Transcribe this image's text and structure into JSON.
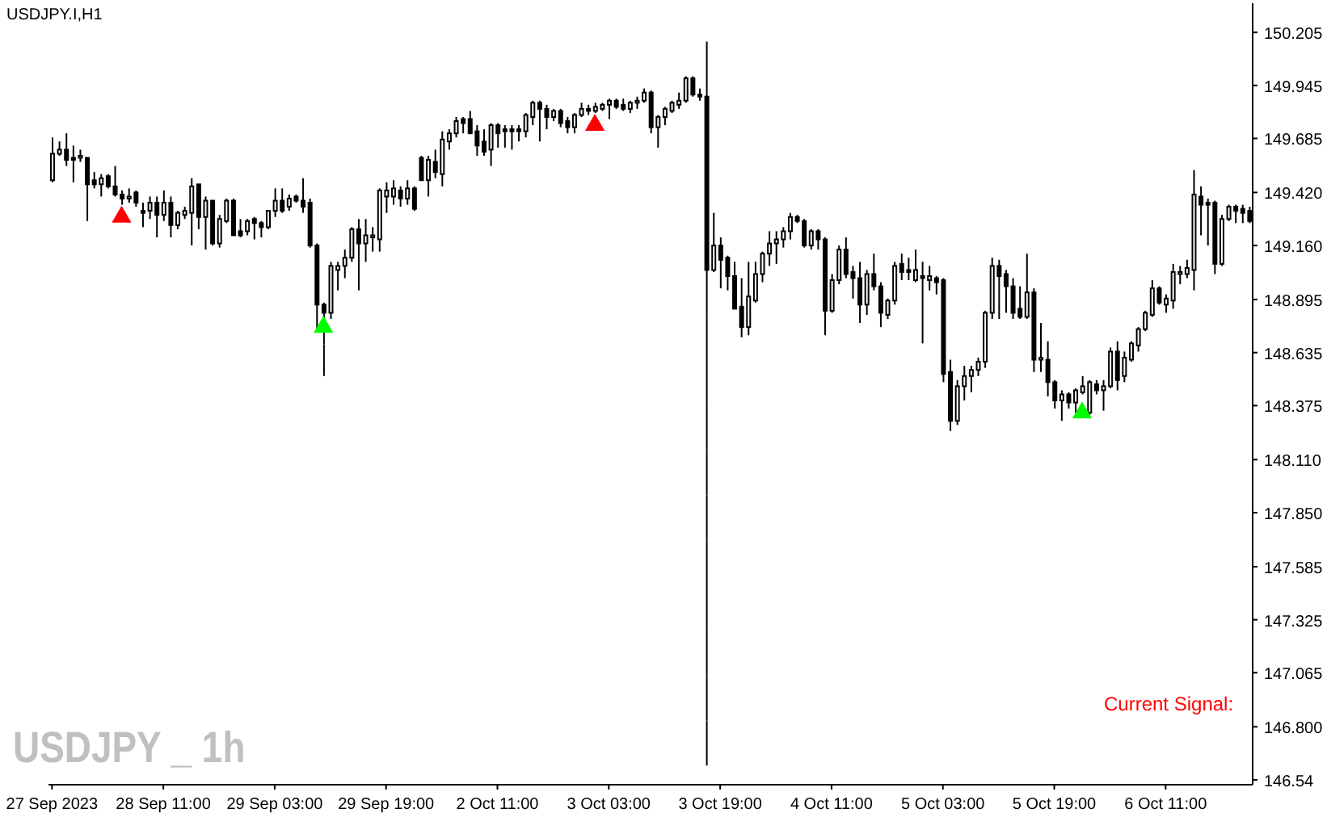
{
  "chart_data": {
    "type": "candlestick",
    "title": "USDJPY.I,H1",
    "color": "#000000",
    "grid": false,
    "legend": false,
    "categories": [
      "27 Sep 2023",
      null,
      null,
      null,
      null,
      null,
      null,
      null,
      null,
      null,
      null,
      null,
      null,
      null,
      null,
      null,
      "28 Sep 11:00",
      null,
      null,
      null,
      null,
      null,
      null,
      null,
      null,
      null,
      null,
      null,
      null,
      null,
      null,
      null,
      "29 Sep 03:00",
      null,
      null,
      null,
      null,
      null,
      null,
      null,
      null,
      null,
      null,
      null,
      null,
      null,
      null,
      null,
      "29 Sep 19:00",
      null,
      null,
      null,
      null,
      null,
      null,
      null,
      null,
      null,
      null,
      null,
      null,
      null,
      null,
      null,
      "2 Oct 11:00",
      null,
      null,
      null,
      null,
      null,
      null,
      null,
      null,
      null,
      null,
      null,
      null,
      null,
      null,
      null,
      "3 Oct 03:00",
      null,
      null,
      null,
      null,
      null,
      null,
      null,
      null,
      null,
      null,
      null,
      null,
      null,
      null,
      null,
      "3 Oct 19:00",
      null,
      null,
      null,
      null,
      null,
      null,
      null,
      null,
      null,
      null,
      null,
      null,
      null,
      null,
      null,
      "4 Oct 11:00",
      null,
      null,
      null,
      null,
      null,
      null,
      null,
      null,
      null,
      null,
      null,
      null,
      null,
      null,
      null,
      "5 Oct 03:00",
      null,
      null,
      null,
      null,
      null,
      null,
      null,
      null,
      null,
      null,
      null,
      null,
      null,
      null,
      null,
      "5 Oct 19:00",
      null,
      null,
      null,
      null,
      null,
      null,
      null,
      null,
      null,
      null,
      null,
      null,
      null,
      null,
      null,
      "6 Oct 11:00",
      null,
      null,
      null,
      null,
      null,
      null,
      null,
      null,
      null,
      null,
      null,
      null
    ],
    "ohlc": [
      [
        149.48,
        149.69,
        149.47,
        149.61
      ],
      [
        149.61,
        149.67,
        149.6,
        149.63
      ],
      [
        149.63,
        149.71,
        149.55,
        149.58
      ],
      [
        149.59,
        149.65,
        149.47,
        149.58
      ],
      [
        149.59,
        149.63,
        149.57,
        149.6
      ],
      [
        149.59,
        149.59,
        149.28,
        149.46
      ],
      [
        149.48,
        149.52,
        149.44,
        149.46
      ],
      [
        149.46,
        149.51,
        149.4,
        149.49
      ],
      [
        149.5,
        149.51,
        149.44,
        149.45
      ],
      [
        149.45,
        149.55,
        149.4,
        149.41
      ],
      [
        149.41,
        149.43,
        149.36,
        149.39
      ],
      [
        149.39,
        149.44,
        149.37,
        149.4
      ],
      [
        149.42,
        149.43,
        149.35,
        149.37
      ],
      [
        149.33,
        149.37,
        149.25,
        149.32
      ],
      [
        149.33,
        149.4,
        149.29,
        149.37
      ],
      [
        149.37,
        149.4,
        149.2,
        149.31
      ],
      [
        149.31,
        149.43,
        149.28,
        149.37
      ],
      [
        149.37,
        149.4,
        149.2,
        149.26
      ],
      [
        149.26,
        149.33,
        149.24,
        149.32
      ],
      [
        149.31,
        149.35,
        149.29,
        149.33
      ],
      [
        149.32,
        149.49,
        149.16,
        149.45
      ],
      [
        149.46,
        149.46,
        149.24,
        149.3
      ],
      [
        149.3,
        149.4,
        149.14,
        149.38
      ],
      [
        149.38,
        149.38,
        149.16,
        149.17
      ],
      [
        149.17,
        149.31,
        149.15,
        149.29
      ],
      [
        149.28,
        149.39,
        149.27,
        149.38
      ],
      [
        149.38,
        149.39,
        149.21,
        149.21
      ],
      [
        149.23,
        149.29,
        149.2,
        149.21
      ],
      [
        149.23,
        149.29,
        149.21,
        149.28
      ],
      [
        149.29,
        149.3,
        149.19,
        149.27
      ],
      [
        149.27,
        149.28,
        149.2,
        149.25
      ],
      [
        149.25,
        149.33,
        149.24,
        149.33
      ],
      [
        149.33,
        149.44,
        149.3,
        149.38
      ],
      [
        149.38,
        149.44,
        149.32,
        149.33
      ],
      [
        149.35,
        149.41,
        149.33,
        149.39
      ],
      [
        149.4,
        149.41,
        149.37,
        149.38
      ],
      [
        149.38,
        149.49,
        149.32,
        149.35
      ],
      [
        149.37,
        149.39,
        149.15,
        149.16
      ],
      [
        149.16,
        149.17,
        148.74,
        148.87
      ],
      [
        148.87,
        148.88,
        148.52,
        148.83
      ],
      [
        148.83,
        149.08,
        148.8,
        149.06
      ],
      [
        149.04,
        149.08,
        148.94,
        149.06
      ],
      [
        149.06,
        149.14,
        149.0,
        149.1
      ],
      [
        149.1,
        149.25,
        149.08,
        149.24
      ],
      [
        149.24,
        149.29,
        148.94,
        149.17
      ],
      [
        149.17,
        149.29,
        149.08,
        149.21
      ],
      [
        149.2,
        149.25,
        149.13,
        149.21
      ],
      [
        149.19,
        149.44,
        149.13,
        149.43
      ],
      [
        149.4,
        149.47,
        149.32,
        149.43
      ],
      [
        149.4,
        149.48,
        149.36,
        149.44
      ],
      [
        149.43,
        149.45,
        149.35,
        149.39
      ],
      [
        149.39,
        149.48,
        149.36,
        149.44
      ],
      [
        149.44,
        149.45,
        149.33,
        149.34
      ],
      [
        149.59,
        149.6,
        149.48,
        149.48
      ],
      [
        149.48,
        149.6,
        149.4,
        149.58
      ],
      [
        149.57,
        149.63,
        149.49,
        149.52
      ],
      [
        149.51,
        149.72,
        149.45,
        149.68
      ],
      [
        149.67,
        149.73,
        149.63,
        149.71
      ],
      [
        149.71,
        149.79,
        149.69,
        149.77
      ],
      [
        149.78,
        149.79,
        149.71,
        149.76
      ],
      [
        149.78,
        149.82,
        149.71,
        149.71
      ],
      [
        149.72,
        149.75,
        149.6,
        149.65
      ],
      [
        149.67,
        149.73,
        149.6,
        149.62
      ],
      [
        149.63,
        149.76,
        149.55,
        149.75
      ],
      [
        149.75,
        149.76,
        149.64,
        149.71
      ],
      [
        149.73,
        149.75,
        149.64,
        149.72
      ],
      [
        149.73,
        149.75,
        149.63,
        149.72
      ],
      [
        149.73,
        149.75,
        149.67,
        149.72
      ],
      [
        149.72,
        149.81,
        149.69,
        149.8
      ],
      [
        149.79,
        149.87,
        149.75,
        149.86
      ],
      [
        149.86,
        149.87,
        149.67,
        149.83
      ],
      [
        149.83,
        149.85,
        149.73,
        149.79
      ],
      [
        149.79,
        149.83,
        149.77,
        149.82
      ],
      [
        149.82,
        149.83,
        149.74,
        149.76
      ],
      [
        149.77,
        149.79,
        149.71,
        149.74
      ],
      [
        149.74,
        149.81,
        149.71,
        149.8
      ],
      [
        149.8,
        149.86,
        149.79,
        149.83
      ],
      [
        149.83,
        149.85,
        149.8,
        149.82
      ],
      [
        149.82,
        149.86,
        149.81,
        149.84
      ],
      [
        149.83,
        149.86,
        149.82,
        149.85
      ],
      [
        149.85,
        149.88,
        149.78,
        149.87
      ],
      [
        149.87,
        149.88,
        149.83,
        149.84
      ],
      [
        149.85,
        149.88,
        149.82,
        149.83
      ],
      [
        149.83,
        149.87,
        149.81,
        149.86
      ],
      [
        149.86,
        149.89,
        149.83,
        149.87
      ],
      [
        149.87,
        149.93,
        149.86,
        149.91
      ],
      [
        149.91,
        149.92,
        149.71,
        149.74
      ],
      [
        149.74,
        149.8,
        149.64,
        149.79
      ],
      [
        149.79,
        149.84,
        149.75,
        149.83
      ],
      [
        149.82,
        149.87,
        149.81,
        149.86
      ],
      [
        149.85,
        149.91,
        149.83,
        149.87
      ],
      [
        149.87,
        149.99,
        149.86,
        149.98
      ],
      [
        149.98,
        149.99,
        149.89,
        149.9
      ],
      [
        149.9,
        149.93,
        149.87,
        149.89
      ],
      [
        149.89,
        150.16,
        146.61,
        149.04
      ],
      [
        149.04,
        149.32,
        149.03,
        149.16
      ],
      [
        149.16,
        149.2,
        148.95,
        149.09
      ],
      [
        149.1,
        149.11,
        148.94,
        149.01
      ],
      [
        149.01,
        149.08,
        148.85,
        148.85
      ],
      [
        148.86,
        149.0,
        148.71,
        148.76
      ],
      [
        148.76,
        149.08,
        148.72,
        148.91
      ],
      [
        148.89,
        149.08,
        148.88,
        149.02
      ],
      [
        149.02,
        149.13,
        148.98,
        149.12
      ],
      [
        149.12,
        149.23,
        149.06,
        149.17
      ],
      [
        149.17,
        149.23,
        149.07,
        149.19
      ],
      [
        149.19,
        149.25,
        149.15,
        149.23
      ],
      [
        149.23,
        149.32,
        149.19,
        149.3
      ],
      [
        149.3,
        149.31,
        149.27,
        149.28
      ],
      [
        149.28,
        149.29,
        149.15,
        149.16
      ],
      [
        149.16,
        149.24,
        149.14,
        149.23
      ],
      [
        149.23,
        149.24,
        149.14,
        149.19
      ],
      [
        149.19,
        149.2,
        148.72,
        148.84
      ],
      [
        148.84,
        149.02,
        148.83,
        148.99
      ],
      [
        148.99,
        149.16,
        148.97,
        149.14
      ],
      [
        149.14,
        149.2,
        149.0,
        149.02
      ],
      [
        149.03,
        149.06,
        148.9,
        149.0
      ],
      [
        149.0,
        149.08,
        148.78,
        148.87
      ],
      [
        148.87,
        149.04,
        148.82,
        149.02
      ],
      [
        149.02,
        149.12,
        148.94,
        148.96
      ],
      [
        148.96,
        148.98,
        148.76,
        148.83
      ],
      [
        148.82,
        148.9,
        148.8,
        148.89
      ],
      [
        148.89,
        149.08,
        148.87,
        149.06
      ],
      [
        149.07,
        149.12,
        148.99,
        149.03
      ],
      [
        149.04,
        149.1,
        148.99,
        149.03
      ],
      [
        148.99,
        149.14,
        148.98,
        149.04
      ],
      [
        149.01,
        149.08,
        148.68,
        149.0
      ],
      [
        148.99,
        149.06,
        148.94,
        149.01
      ],
      [
        149.0,
        149.01,
        148.92,
        148.98
      ],
      [
        148.99,
        149.0,
        148.49,
        148.53
      ],
      [
        148.54,
        148.6,
        148.25,
        148.3
      ],
      [
        148.3,
        148.5,
        148.28,
        148.47
      ],
      [
        148.47,
        148.57,
        148.4,
        148.52
      ],
      [
        148.52,
        148.57,
        148.44,
        148.55
      ],
      [
        148.55,
        148.61,
        148.52,
        148.59
      ],
      [
        148.59,
        148.84,
        148.56,
        148.83
      ],
      [
        148.83,
        149.1,
        148.8,
        149.06
      ],
      [
        149.06,
        149.09,
        148.8,
        149.01
      ],
      [
        149.02,
        149.04,
        148.83,
        148.96
      ],
      [
        148.96,
        149.0,
        148.8,
        148.83
      ],
      [
        148.85,
        148.96,
        148.8,
        148.81
      ],
      [
        148.81,
        149.12,
        148.8,
        148.93
      ],
      [
        148.93,
        148.95,
        148.54,
        148.6
      ],
      [
        148.6,
        148.78,
        148.54,
        148.61
      ],
      [
        148.6,
        148.69,
        148.42,
        148.49
      ],
      [
        148.49,
        148.5,
        148.36,
        148.4
      ],
      [
        148.4,
        148.45,
        148.3,
        148.43
      ],
      [
        148.43,
        148.44,
        148.36,
        148.39
      ],
      [
        148.39,
        148.46,
        148.34,
        148.45
      ],
      [
        148.44,
        148.52,
        148.43,
        148.47
      ],
      [
        148.34,
        148.5,
        148.33,
        148.49
      ],
      [
        148.48,
        148.5,
        148.43,
        148.45
      ],
      [
        148.45,
        148.5,
        148.35,
        148.47
      ],
      [
        148.47,
        148.66,
        148.46,
        148.64
      ],
      [
        148.64,
        148.69,
        148.45,
        148.5
      ],
      [
        148.52,
        148.64,
        148.49,
        148.61
      ],
      [
        148.6,
        148.69,
        148.59,
        148.68
      ],
      [
        148.67,
        148.76,
        148.64,
        148.75
      ],
      [
        148.75,
        148.84,
        148.74,
        148.83
      ],
      [
        148.82,
        148.99,
        148.81,
        148.95
      ],
      [
        148.95,
        148.96,
        148.87,
        148.88
      ],
      [
        148.87,
        148.92,
        148.83,
        148.9
      ],
      [
        148.89,
        149.07,
        148.85,
        149.03
      ],
      [
        149.02,
        149.06,
        148.97,
        149.03
      ],
      [
        149.02,
        149.09,
        149.0,
        149.05
      ],
      [
        149.04,
        149.53,
        148.94,
        149.41
      ],
      [
        149.4,
        149.45,
        149.21,
        149.36
      ],
      [
        149.37,
        149.39,
        149.16,
        149.36
      ],
      [
        149.37,
        149.38,
        149.02,
        149.07
      ],
      [
        149.07,
        149.31,
        149.06,
        149.29
      ],
      [
        149.29,
        149.36,
        149.28,
        149.35
      ],
      [
        149.35,
        149.36,
        149.27,
        149.33
      ],
      [
        149.34,
        149.36,
        149.27,
        149.32
      ],
      [
        149.33,
        149.35,
        149.27,
        149.28
      ]
    ],
    "series": [
      {
        "type": "scatter",
        "color": "#ff0000",
        "marker": "triangle",
        "values": [
          null,
          null,
          null,
          null,
          null,
          null,
          null,
          null,
          null,
          null,
          149.3,
          null,
          null,
          null,
          null,
          null,
          null,
          null,
          null,
          null,
          null,
          null,
          null,
          null,
          null,
          null,
          null,
          null,
          null,
          null,
          null,
          null,
          null,
          null,
          null,
          null,
          null,
          null,
          null,
          null,
          null,
          null,
          null,
          null,
          null,
          null,
          null,
          null,
          null,
          null,
          null,
          null,
          null,
          null,
          null,
          null,
          null,
          null,
          null,
          null,
          null,
          null,
          null,
          null,
          null,
          null,
          null,
          null,
          null,
          null,
          null,
          null,
          null,
          null,
          null,
          null,
          null,
          null,
          149.75,
          null,
          null,
          null,
          null,
          null,
          null,
          null,
          null,
          null,
          null,
          null,
          null,
          null,
          null,
          null,
          null,
          null,
          null,
          null,
          null,
          null,
          null,
          null,
          null,
          null,
          null,
          null,
          null,
          null,
          null,
          null,
          null,
          null,
          null,
          null,
          null,
          null,
          null,
          null,
          null,
          null,
          null,
          null,
          null,
          null,
          null,
          null,
          null,
          null,
          null,
          null,
          null,
          null,
          null,
          null,
          null,
          null,
          null,
          null,
          null,
          null,
          null,
          null,
          null,
          null,
          null,
          null,
          null,
          null,
          null,
          null,
          null,
          null,
          null,
          null,
          null,
          null,
          null,
          null,
          null,
          null,
          null,
          null,
          null,
          null,
          null,
          null,
          null,
          null,
          null,
          null,
          null,
          null,
          null
        ]
      },
      {
        "type": "scatter",
        "color": "#00ff00",
        "marker": "triangle",
        "values": [
          null,
          null,
          null,
          null,
          null,
          null,
          null,
          null,
          null,
          null,
          null,
          null,
          null,
          null,
          null,
          null,
          null,
          null,
          null,
          null,
          null,
          null,
          null,
          null,
          null,
          null,
          null,
          null,
          null,
          null,
          null,
          null,
          null,
          null,
          null,
          null,
          null,
          null,
          null,
          148.76,
          null,
          null,
          null,
          null,
          null,
          null,
          null,
          null,
          null,
          null,
          null,
          null,
          null,
          null,
          null,
          null,
          null,
          null,
          null,
          null,
          null,
          null,
          null,
          null,
          null,
          null,
          null,
          null,
          null,
          null,
          null,
          null,
          null,
          null,
          null,
          null,
          null,
          null,
          null,
          null,
          null,
          null,
          null,
          null,
          null,
          null,
          null,
          null,
          null,
          null,
          null,
          null,
          null,
          null,
          null,
          null,
          null,
          null,
          null,
          null,
          null,
          null,
          null,
          null,
          null,
          null,
          null,
          null,
          null,
          null,
          null,
          null,
          null,
          null,
          null,
          null,
          null,
          null,
          null,
          null,
          null,
          null,
          null,
          null,
          null,
          null,
          null,
          null,
          null,
          null,
          null,
          null,
          null,
          null,
          null,
          null,
          null,
          null,
          null,
          null,
          null,
          null,
          null,
          null,
          null,
          null,
          null,
          null,
          148.34,
          null,
          null,
          null,
          null,
          null,
          null,
          null,
          null,
          null,
          null,
          null,
          null,
          null,
          null,
          null,
          null,
          null,
          null,
          null,
          null,
          null,
          null,
          null,
          null
        ]
      }
    ],
    "ylim": [
      146.516,
      150.348
    ],
    "yticks": [
      150.205,
      149.945,
      149.685,
      {
        "value": 149.42,
        "label": "149.420"
      },
      {
        "value": 149.16,
        "label": "149.160"
      },
      148.895,
      148.635,
      148.375,
      {
        "value": 148.11,
        "label": "148.110"
      },
      {
        "value": 147.85,
        "label": "147.850"
      },
      147.585,
      147.325,
      147.065,
      {
        "value": 146.8,
        "label": "146.800"
      },
      146.54
    ],
    "annotations": [
      "USDJPY _ 1h",
      "Current Signal:"
    ]
  }
}
